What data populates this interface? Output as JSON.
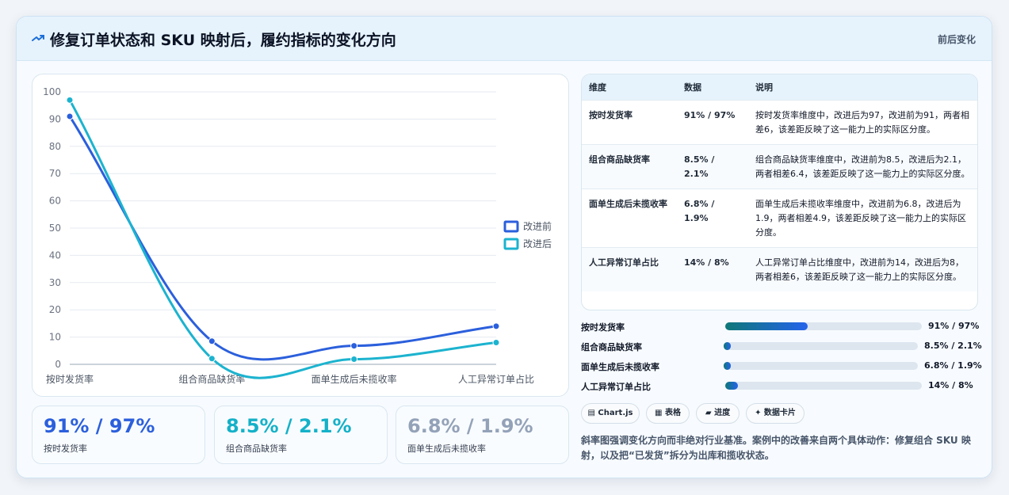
{
  "header": {
    "title": "修复订单状态和 SKU 映射后，履约指标的变化方向",
    "badge": "前后变化"
  },
  "chart_data": {
    "type": "line",
    "categories": [
      "按时发货率",
      "组合商品缺货率",
      "面单生成后未揽收率",
      "人工异常订单占比"
    ],
    "series": [
      {
        "name": "改进前",
        "values": [
          91,
          8.5,
          6.8,
          14
        ],
        "color": "#2b5fdc"
      },
      {
        "name": "改进后",
        "values": [
          97,
          2.1,
          1.9,
          8
        ],
        "color": "#1cb3cf"
      }
    ],
    "ylim": [
      0,
      100
    ],
    "yticks": [
      "0",
      "10",
      "20",
      "30",
      "40",
      "50",
      "60",
      "70",
      "80",
      "90",
      "100"
    ],
    "legend": "right"
  },
  "kpis": [
    {
      "value": "91% / 97%",
      "label": "按时发货率",
      "color": "#2b5fdc"
    },
    {
      "value": "8.5% / 2.1%",
      "label": "组合商品缺货率",
      "color": "#14b1c8"
    },
    {
      "value": "6.8% / 1.9%",
      "label": "面单生成后未揽收率",
      "color": "#93a2b8"
    }
  ],
  "table": {
    "headers": [
      "维度",
      "数据",
      "说明"
    ],
    "rows": [
      {
        "dim": "按时发货率",
        "data": "91% / 97%",
        "desc": "按时发货率维度中，改进后为97，改进前为91，两者相差6，该差距反映了这一能力上的实际区分度。"
      },
      {
        "dim": "组合商品缺货率",
        "data": "8.5% / 2.1%",
        "desc": "组合商品缺货率维度中，改进前为8.5，改进后为2.1，两者相差6.4，该差距反映了这一能力上的实际区分度。"
      },
      {
        "dim": "面单生成后未揽收率",
        "data": "6.8% / 1.9%",
        "desc": "面单生成后未揽收率维度中，改进前为6.8，改进后为1.9，两者相差4.9，该差距反映了这一能力上的实际区分度。"
      },
      {
        "dim": "人工异常订单占比",
        "data": "14% / 8%",
        "desc": "人工异常订单占比维度中，改进前为14，改进后为8，两者相差6，该差距反映了这一能力上的实际区分度。"
      }
    ]
  },
  "bars": [
    {
      "label": "按时发货率",
      "value": "91% / 97%",
      "fill": 0.42
    },
    {
      "label": "组合商品缺货率",
      "value": "8.5% / 2.1%",
      "fill": 0.036
    },
    {
      "label": "面单生成后未揽收率",
      "value": "6.8% / 1.9%",
      "fill": 0.036
    },
    {
      "label": "人工异常订单占比",
      "value": "14% / 8%",
      "fill": 0.065
    }
  ],
  "buttons": {
    "chartjs": "▤ Chart.js",
    "table": "▦ 表格",
    "progress": "▰ 进度",
    "cards": "✦ 数据卡片"
  },
  "note": "斜率图强调变化方向而非绝对行业基准。案例中的改善来自两个具体动作：修复组合 SKU 映射，以及把“已发货”拆分为出库和揽收状态。"
}
